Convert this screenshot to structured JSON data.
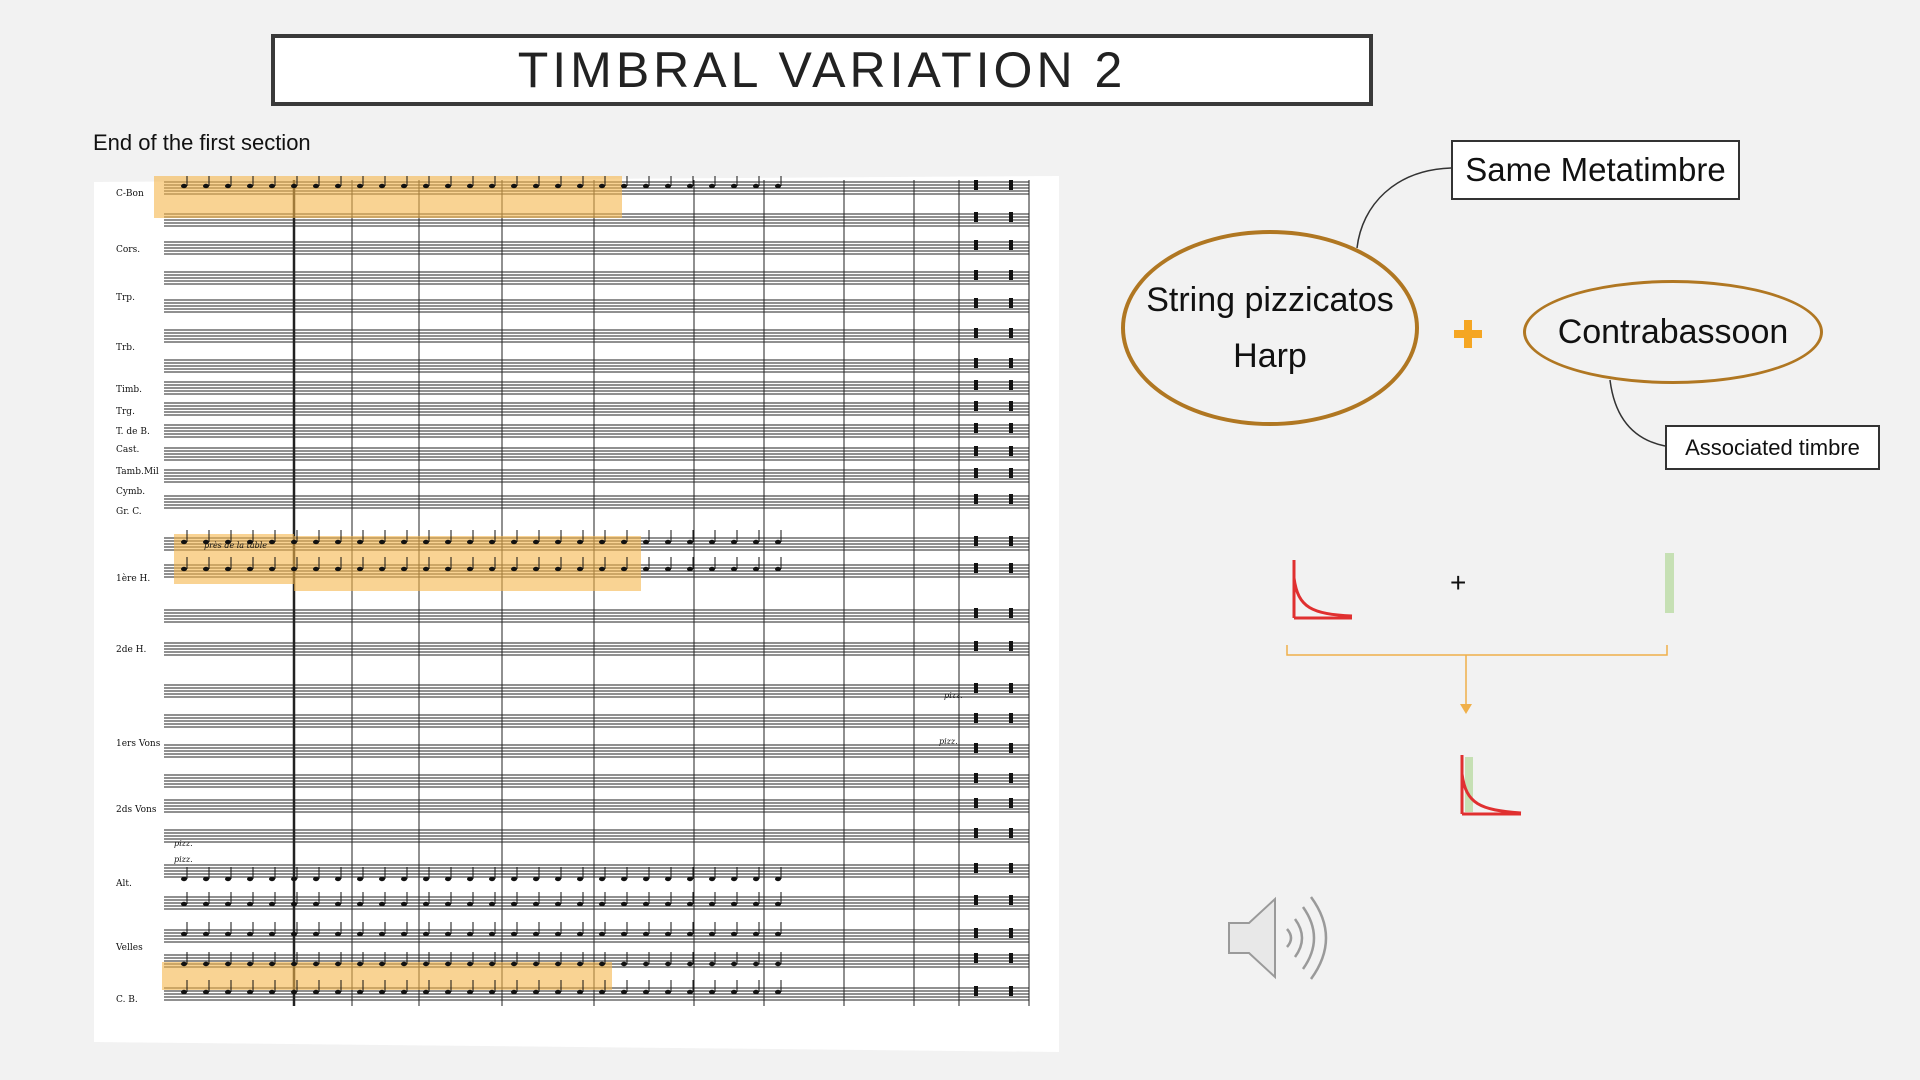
{
  "slide": {
    "title": "TIMBRAL VARIATION 2",
    "subtitle": "End of the first section"
  },
  "score": {
    "instrument_labels": [
      "C-Bon",
      "Cors.",
      "Trp.",
      "Trb.",
      "Timb.",
      "Trg.",
      "T. de B.",
      "Cast.",
      "Tamb.Mil",
      "Cymb.",
      "Gr. C.",
      "1ère H.",
      "2de H.",
      "1ers Vons",
      "2ds Vons",
      "Alt.",
      "Velles",
      "C. B."
    ],
    "annotations": [
      "près de la table",
      "pizz.",
      "pizz.",
      "pizz.",
      "pizz."
    ],
    "highlight_color": "#f5b64b"
  },
  "diagram": {
    "metatimbre_label": "Same Metatimbre",
    "left_ellipse_line1": "String pizzicatos",
    "left_ellipse_line2": "Harp",
    "right_ellipse": "Contrabassoon",
    "associated_label": "Associated timbre",
    "plus_symbol": "+",
    "ellipse_color": "#b07722",
    "plus_color": "#f5a623",
    "envelope_color": "#e03030",
    "sustain_color": "#c6e0b4"
  },
  "icons": {
    "speaker": "speaker-icon"
  }
}
